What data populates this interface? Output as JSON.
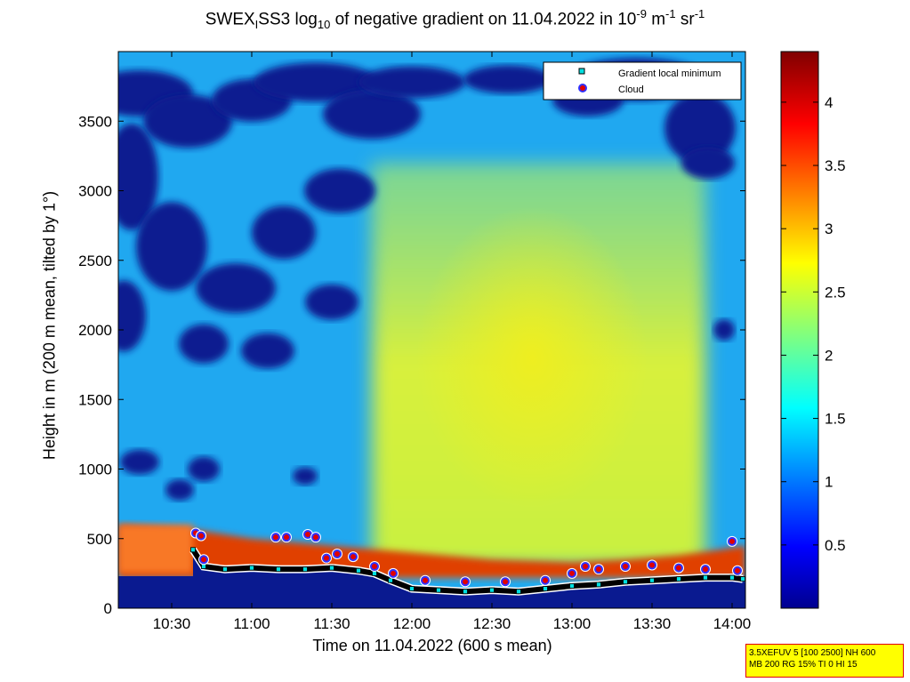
{
  "title_parts": {
    "p1": "SWEX",
    "sub1": "I",
    "p2": "SS3 log",
    "sub2": "10",
    "p3": " of negative gradient on 11.04.2022 in 10",
    "sup1": "-9",
    "p4": " m",
    "sup2": "-1",
    "p5": " sr",
    "sup3": "-1"
  },
  "info_box": {
    "line1": "3.5XEFUV 5 [100 2500] NH 600",
    "line2": "MB 200 RG 15% TI 0 HI 15"
  },
  "colors": {
    "cloud_marker": "#e00000",
    "cloud_outline": "#3030ff",
    "gradient_marker": "#00e0e0",
    "gradient_line": "#000000"
  },
  "chart_data": {
    "type": "heatmap",
    "title": "SWEX_I SS3 log10 of negative gradient on 11.04.2022 in 10^-9 m^-1 sr^-1",
    "xlabel": "Time on 11.04.2022 (600 s mean)",
    "ylabel": "Height in m (200 m mean, tilted by 1°)",
    "xlim": [
      "10:10",
      "14:05"
    ],
    "ylim": [
      0,
      4000
    ],
    "xticks": [
      "10:30",
      "11:00",
      "11:30",
      "12:00",
      "12:30",
      "13:00",
      "13:30",
      "14:00"
    ],
    "yticks": [
      0,
      500,
      1000,
      1500,
      2000,
      2500,
      3000,
      3500
    ],
    "colorbar": {
      "ticks": [
        0.5,
        1,
        1.5,
        2,
        2.5,
        3,
        3.5,
        4
      ],
      "range": [
        0,
        4.4
      ],
      "colormap": "jet"
    },
    "legend": {
      "position": "top-right",
      "entries": [
        "Gradient local minimum",
        "Cloud"
      ]
    },
    "gradient_local_minimum": {
      "x": [
        "10:38",
        "10:42",
        "10:50",
        "11:00",
        "11:10",
        "11:20",
        "11:30",
        "11:40",
        "11:46",
        "11:52",
        "12:00",
        "12:10",
        "12:20",
        "12:30",
        "12:40",
        "12:50",
        "13:00",
        "13:10",
        "13:20",
        "13:30",
        "13:40",
        "13:50",
        "14:00",
        "14:04"
      ],
      "y": [
        420,
        300,
        280,
        290,
        280,
        280,
        290,
        270,
        250,
        200,
        140,
        130,
        120,
        130,
        120,
        140,
        160,
        170,
        190,
        200,
        210,
        220,
        220,
        210
      ]
    },
    "cloud": {
      "x": [
        "10:39",
        "10:41",
        "10:42",
        "11:09",
        "11:13",
        "11:21",
        "11:24",
        "11:28",
        "11:32",
        "11:38",
        "11:46",
        "11:53",
        "12:05",
        "12:20",
        "12:35",
        "12:50",
        "13:00",
        "13:05",
        "13:10",
        "13:20",
        "13:30",
        "13:40",
        "13:50",
        "14:00",
        "14:02"
      ],
      "y": [
        540,
        520,
        350,
        510,
        510,
        530,
        510,
        360,
        390,
        370,
        300,
        250,
        200,
        190,
        190,
        200,
        250,
        300,
        280,
        300,
        310,
        290,
        280,
        480,
        270
      ]
    },
    "heatmap_summary": {
      "near_surface_layer_top_m": [
        600,
        560,
        500,
        450,
        400,
        350,
        330,
        350,
        380,
        420,
        450
      ],
      "near_surface_layer_time": [
        "10:10",
        "10:40",
        "11:00",
        "11:30",
        "12:00",
        "12:30",
        "13:00",
        "13:20",
        "13:40",
        "13:55",
        "14:05"
      ]
    }
  }
}
